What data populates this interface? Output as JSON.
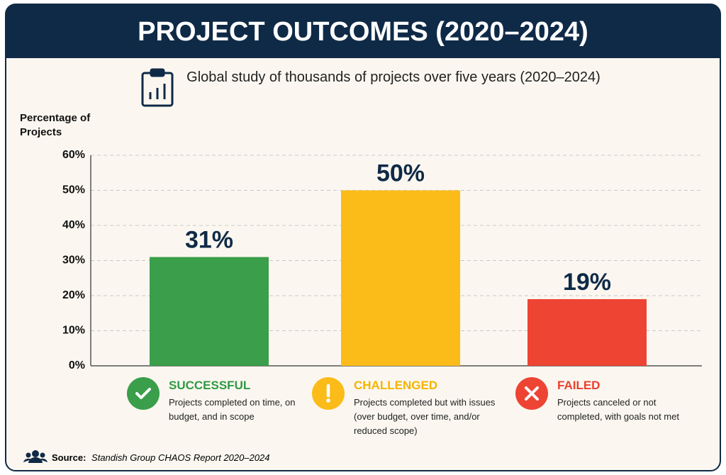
{
  "chart_data": {
    "type": "bar",
    "title": "PROJECT OUTCOMES (2020–2024)",
    "subtitle": "Global study of thousands of projects over five years (2020–2024)",
    "y_label": "Percentage of Projects",
    "categories": [
      "SUCCESSFUL",
      "CHALLENGED",
      "FAILED"
    ],
    "descriptions": [
      "Projects completed on time, on budget, and in scope",
      "Projects completed but with issues (over budget, over time, and/or reduced scope)",
      "Projects canceled or not completed, with goals not met"
    ],
    "values": [
      31,
      50,
      19
    ],
    "value_labels": [
      "31%",
      "50%",
      "19%"
    ],
    "colors": [
      "#3a9e4a",
      "#fbbc1a",
      "#ee4434"
    ],
    "ylim": [
      0,
      60
    ],
    "yticks": [
      {
        "value": 0,
        "label": "0%"
      },
      {
        "value": 10,
        "label": "10%"
      },
      {
        "value": 20,
        "label": "20%"
      },
      {
        "value": 30,
        "label": "30%"
      },
      {
        "value": 40,
        "label": "40%"
      },
      {
        "value": 50,
        "label": "50%"
      },
      {
        "value": 60,
        "label": "60%"
      }
    ],
    "grid": true,
    "source_label": "Source:",
    "source": "Standish Group CHAOS Report 2020–2024"
  }
}
